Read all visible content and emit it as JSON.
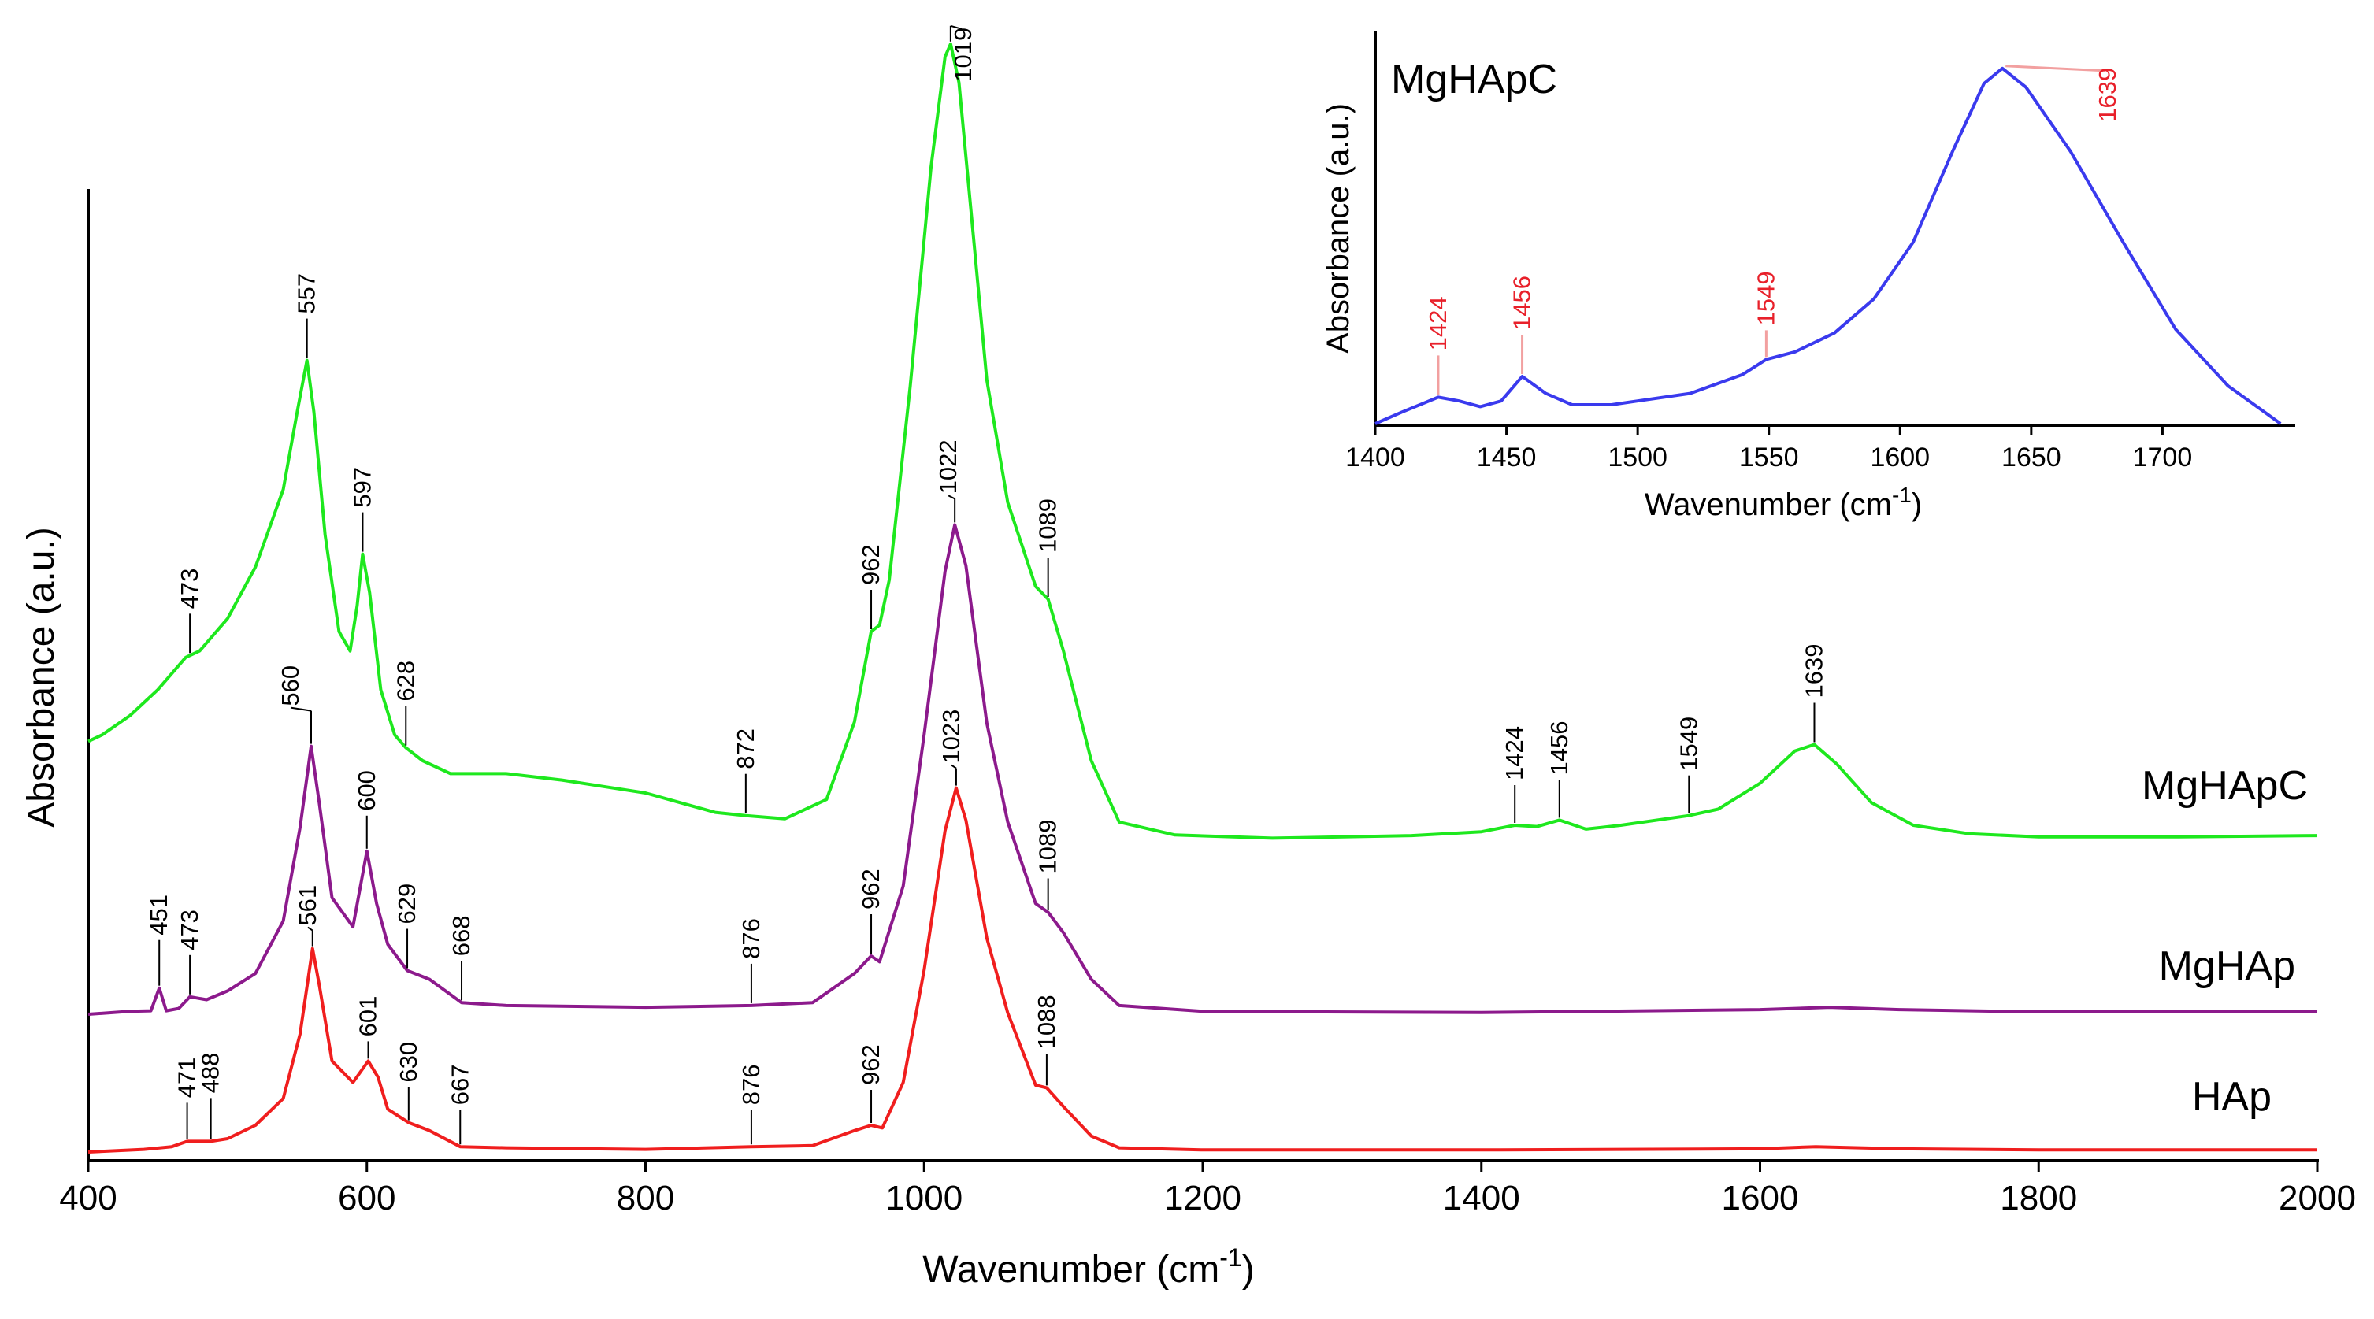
{
  "chart_data": [
    {
      "type": "line",
      "title": "",
      "xlabel": "Wavenumber (cm",
      "xlabel_sup": "-1",
      "xlabel_close": ")",
      "ylabel": "Absorbance (a.u.)",
      "xlim": [
        400,
        2000
      ],
      "x_ticks": [
        "400",
        "600",
        "800",
        "1000",
        "1200",
        "1400",
        "1600",
        "1800",
        "2000"
      ],
      "grid": false,
      "series": [
        {
          "name": "MgHApC",
          "color": "#1ee81e",
          "points": [
            [
              400,
              0.23
            ],
            [
              410,
              0.24
            ],
            [
              430,
              0.27
            ],
            [
              450,
              0.31
            ],
            [
              470,
              0.36
            ],
            [
              480,
              0.37
            ],
            [
              500,
              0.42
            ],
            [
              520,
              0.5
            ],
            [
              540,
              0.62
            ],
            [
              550,
              0.74
            ],
            [
              557,
              0.82
            ],
            [
              562,
              0.74
            ],
            [
              570,
              0.55
            ],
            [
              580,
              0.4
            ],
            [
              588,
              0.37
            ],
            [
              593,
              0.44
            ],
            [
              597,
              0.52
            ],
            [
              602,
              0.46
            ],
            [
              610,
              0.31
            ],
            [
              620,
              0.24
            ],
            [
              628,
              0.22
            ],
            [
              640,
              0.2
            ],
            [
              660,
              0.18
            ],
            [
              680,
              0.18
            ],
            [
              700,
              0.18
            ],
            [
              740,
              0.17
            ],
            [
              800,
              0.15
            ],
            [
              850,
              0.12
            ],
            [
              872,
              0.115
            ],
            [
              900,
              0.11
            ],
            [
              930,
              0.14
            ],
            [
              950,
              0.26
            ],
            [
              962,
              0.4
            ],
            [
              968,
              0.41
            ],
            [
              975,
              0.48
            ],
            [
              990,
              0.78
            ],
            [
              1005,
              1.12
            ],
            [
              1015,
              1.29
            ],
            [
              1019,
              1.31
            ],
            [
              1025,
              1.25
            ],
            [
              1035,
              1.02
            ],
            [
              1045,
              0.79
            ],
            [
              1060,
              0.6
            ],
            [
              1080,
              0.47
            ],
            [
              1089,
              0.45
            ],
            [
              1100,
              0.37
            ],
            [
              1120,
              0.2
            ],
            [
              1140,
              0.105
            ],
            [
              1180,
              0.085
            ],
            [
              1250,
              0.08
            ],
            [
              1350,
              0.084
            ],
            [
              1400,
              0.09
            ],
            [
              1424,
              0.1
            ],
            [
              1440,
              0.098
            ],
            [
              1456,
              0.108
            ],
            [
              1475,
              0.094
            ],
            [
              1500,
              0.1
            ],
            [
              1549,
              0.115
            ],
            [
              1570,
              0.125
            ],
            [
              1600,
              0.165
            ],
            [
              1625,
              0.215
            ],
            [
              1639,
              0.225
            ],
            [
              1655,
              0.195
            ],
            [
              1680,
              0.135
            ],
            [
              1710,
              0.1
            ],
            [
              1750,
              0.087
            ],
            [
              1800,
              0.082
            ],
            [
              1900,
              0.082
            ],
            [
              2000,
              0.084
            ]
          ]
        },
        {
          "name": "MgHAp",
          "color": "#8c1a8c",
          "points": [
            [
              400,
              0.0
            ],
            [
              430,
              0.005
            ],
            [
              445,
              0.006
            ],
            [
              451,
              0.045
            ],
            [
              456,
              0.006
            ],
            [
              465,
              0.01
            ],
            [
              473,
              0.03
            ],
            [
              485,
              0.025
            ],
            [
              500,
              0.04
            ],
            [
              520,
              0.07
            ],
            [
              540,
              0.16
            ],
            [
              552,
              0.32
            ],
            [
              560,
              0.46
            ],
            [
              566,
              0.36
            ],
            [
              575,
              0.2
            ],
            [
              590,
              0.15
            ],
            [
              600,
              0.28
            ],
            [
              607,
              0.19
            ],
            [
              615,
              0.12
            ],
            [
              629,
              0.075
            ],
            [
              645,
              0.06
            ],
            [
              668,
              0.02
            ],
            [
              700,
              0.015
            ],
            [
              800,
              0.012
            ],
            [
              876,
              0.015
            ],
            [
              920,
              0.02
            ],
            [
              950,
              0.07
            ],
            [
              962,
              0.1
            ],
            [
              968,
              0.09
            ],
            [
              985,
              0.22
            ],
            [
              1000,
              0.48
            ],
            [
              1015,
              0.76
            ],
            [
              1022,
              0.84
            ],
            [
              1030,
              0.77
            ],
            [
              1045,
              0.5
            ],
            [
              1060,
              0.33
            ],
            [
              1080,
              0.19
            ],
            [
              1089,
              0.175
            ],
            [
              1100,
              0.14
            ],
            [
              1120,
              0.06
            ],
            [
              1140,
              0.015
            ],
            [
              1200,
              0.005
            ],
            [
              1400,
              0.003
            ],
            [
              1600,
              0.008
            ],
            [
              1650,
              0.012
            ],
            [
              1700,
              0.008
            ],
            [
              1800,
              0.004
            ],
            [
              2000,
              0.004
            ]
          ]
        },
        {
          "name": "HAp",
          "color": "#f01e1e",
          "points": [
            [
              400,
              0.0
            ],
            [
              440,
              0.005
            ],
            [
              460,
              0.01
            ],
            [
              471,
              0.02
            ],
            [
              488,
              0.02
            ],
            [
              500,
              0.025
            ],
            [
              520,
              0.05
            ],
            [
              540,
              0.1
            ],
            [
              552,
              0.22
            ],
            [
              561,
              0.38
            ],
            [
              566,
              0.31
            ],
            [
              575,
              0.17
            ],
            [
              590,
              0.13
            ],
            [
              601,
              0.17
            ],
            [
              608,
              0.14
            ],
            [
              615,
              0.08
            ],
            [
              630,
              0.055
            ],
            [
              645,
              0.04
            ],
            [
              667,
              0.01
            ],
            [
              700,
              0.008
            ],
            [
              800,
              0.005
            ],
            [
              876,
              0.01
            ],
            [
              920,
              0.012
            ],
            [
              950,
              0.04
            ],
            [
              962,
              0.05
            ],
            [
              970,
              0.045
            ],
            [
              985,
              0.13
            ],
            [
              1000,
              0.34
            ],
            [
              1015,
              0.6
            ],
            [
              1023,
              0.68
            ],
            [
              1030,
              0.62
            ],
            [
              1045,
              0.4
            ],
            [
              1060,
              0.26
            ],
            [
              1080,
              0.125
            ],
            [
              1088,
              0.12
            ],
            [
              1100,
              0.085
            ],
            [
              1120,
              0.03
            ],
            [
              1140,
              0.008
            ],
            [
              1200,
              0.004
            ],
            [
              1400,
              0.004
            ],
            [
              1600,
              0.006
            ],
            [
              1640,
              0.01
            ],
            [
              1700,
              0.006
            ],
            [
              1800,
              0.004
            ],
            [
              2000,
              0.004
            ]
          ]
        }
      ],
      "series_labels": [
        "MgHApC",
        "MgHAp",
        "HAp"
      ],
      "annotations": [
        {
          "series": "MgHApC",
          "label": "473",
          "x": 473
        },
        {
          "series": "MgHApC",
          "label": "557",
          "x": 557
        },
        {
          "series": "MgHApC",
          "label": "597",
          "x": 597
        },
        {
          "series": "MgHApC",
          "label": "628",
          "x": 628
        },
        {
          "series": "MgHApC",
          "label": "872",
          "x": 872
        },
        {
          "series": "MgHApC",
          "label": "962",
          "x": 962
        },
        {
          "series": "MgHApC",
          "label": "1019",
          "x": 1019
        },
        {
          "series": "MgHApC",
          "label": "1089",
          "x": 1089
        },
        {
          "series": "MgHApC",
          "label": "1424",
          "x": 1424
        },
        {
          "series": "MgHApC",
          "label": "1456",
          "x": 1456
        },
        {
          "series": "MgHApC",
          "label": "1549",
          "x": 1549
        },
        {
          "series": "MgHApC",
          "label": "1639",
          "x": 1639
        },
        {
          "series": "MgHAp",
          "label": "451",
          "x": 451
        },
        {
          "series": "MgHAp",
          "label": "473",
          "x": 473
        },
        {
          "series": "MgHAp",
          "label": "560",
          "x": 560
        },
        {
          "series": "MgHAp",
          "label": "600",
          "x": 600
        },
        {
          "series": "MgHAp",
          "label": "629",
          "x": 629
        },
        {
          "series": "MgHAp",
          "label": "668",
          "x": 668
        },
        {
          "series": "MgHAp",
          "label": "876",
          "x": 876
        },
        {
          "series": "MgHAp",
          "label": "962",
          "x": 962
        },
        {
          "series": "MgHAp",
          "label": "1022",
          "x": 1022
        },
        {
          "series": "MgHAp",
          "label": "1089",
          "x": 1089
        },
        {
          "series": "HAp",
          "label": "471",
          "x": 471
        },
        {
          "series": "HAp",
          "label": "488",
          "x": 488
        },
        {
          "series": "HAp",
          "label": "561",
          "x": 561
        },
        {
          "series": "HAp",
          "label": "601",
          "x": 601
        },
        {
          "series": "HAp",
          "label": "630",
          "x": 630
        },
        {
          "series": "HAp",
          "label": "667",
          "x": 667
        },
        {
          "series": "HAp",
          "label": "876",
          "x": 876
        },
        {
          "series": "HAp",
          "label": "962",
          "x": 962
        },
        {
          "series": "HAp",
          "label": "1023",
          "x": 1023
        },
        {
          "series": "HAp",
          "label": "1088",
          "x": 1088
        }
      ]
    },
    {
      "type": "line",
      "title": "MgHApC",
      "xlabel": "Wavenumber (cm",
      "xlabel_sup": "-1",
      "xlabel_close": ")",
      "ylabel": "Absorbance (a.u.)",
      "xlim": [
        1400,
        1750
      ],
      "x_ticks": [
        "1400",
        "1450",
        "1500",
        "1550",
        "1600",
        "1650",
        "1700"
      ],
      "series": [
        {
          "name": "MgHApC",
          "color": "#3a3aee",
          "points": [
            [
              1400,
              0.0
            ],
            [
              1410,
              0.03
            ],
            [
              1424,
              0.07
            ],
            [
              1432,
              0.06
            ],
            [
              1440,
              0.045
            ],
            [
              1448,
              0.06
            ],
            [
              1456,
              0.125
            ],
            [
              1465,
              0.08
            ],
            [
              1475,
              0.05
            ],
            [
              1490,
              0.05
            ],
            [
              1500,
              0.06
            ],
            [
              1520,
              0.08
            ],
            [
              1540,
              0.13
            ],
            [
              1549,
              0.17
            ],
            [
              1560,
              0.19
            ],
            [
              1575,
              0.24
            ],
            [
              1590,
              0.33
            ],
            [
              1605,
              0.48
            ],
            [
              1620,
              0.72
            ],
            [
              1632,
              0.9
            ],
            [
              1639,
              0.94
            ],
            [
              1648,
              0.89
            ],
            [
              1665,
              0.72
            ],
            [
              1685,
              0.48
            ],
            [
              1705,
              0.25
            ],
            [
              1725,
              0.1
            ],
            [
              1740,
              0.025
            ],
            [
              1745,
              0.0
            ]
          ]
        }
      ],
      "annotations": [
        {
          "label": "1424",
          "x": 1424
        },
        {
          "label": "1456",
          "x": 1456
        },
        {
          "label": "1549",
          "x": 1549
        },
        {
          "label": "1639",
          "x": 1639
        }
      ],
      "annotation_color": "#e8202a",
      "annotation_line_color": "#f2a0a0"
    }
  ]
}
